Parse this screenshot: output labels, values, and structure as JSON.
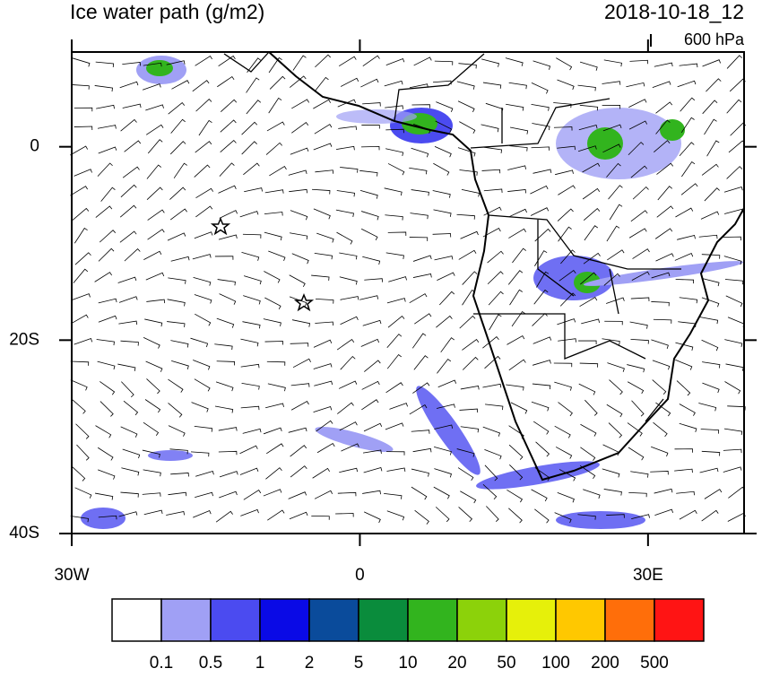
{
  "map": {
    "title": "Ice water path (g/m2)",
    "date": "2018-10-18_12",
    "level": "600 hPa",
    "lonlim": [
      -30,
      40
    ],
    "latlim": [
      -40,
      9.8
    ],
    "lat_ticks": [
      {
        "value": 0,
        "label": "0"
      },
      {
        "value": -20,
        "label": "20S"
      },
      {
        "value": -40,
        "label": "40S"
      }
    ],
    "lon_ticks": [
      {
        "value": -30,
        "label": "30W"
      },
      {
        "value": 0,
        "label": "0"
      },
      {
        "value": 30,
        "label": "30E"
      }
    ],
    "colorbar": {
      "levels": [
        0.1,
        0.5,
        1,
        2,
        5,
        10,
        20,
        50,
        100,
        200,
        500
      ],
      "colors": [
        "#ffffff",
        "#a0a0f5",
        "#4b4bf0",
        "#0a0ae6",
        "#0a4b9b",
        "#0a8c3c",
        "#32b41e",
        "#8cd20a",
        "#e6f00a",
        "#ffc800",
        "#ff6e0a",
        "#ff1414"
      ]
    }
  }
}
